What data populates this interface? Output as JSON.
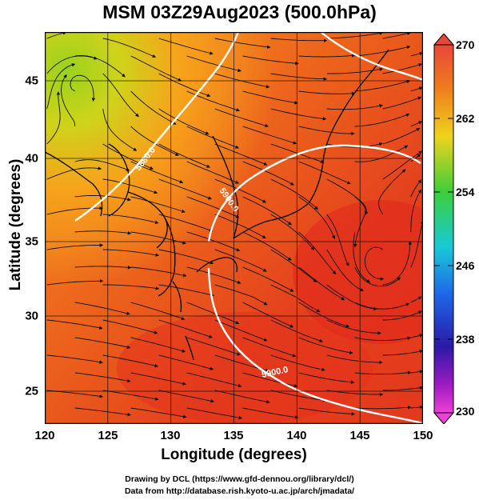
{
  "title": "MSM 03Z29Aug2023 (500.0hPa)",
  "xlabel": "Longitude (degrees)",
  "ylabel": "Latitude  (degrees)",
  "x_ticks": [
    "120",
    "125",
    "130",
    "135",
    "140",
    "145",
    "150"
  ],
  "y_ticks": [
    "45",
    "40",
    "35",
    "30",
    "25"
  ],
  "colorbar_ticks": [
    "270",
    "262",
    "254",
    "246",
    "238",
    "230"
  ],
  "contour_labels": [
    "5880.0",
    "5900.0",
    "5900.0"
  ],
  "credits": [
    "Drawing by DCL (https://www.gfd-dennou.org/library/dcl/)",
    "Data from http://database.rish.kyoto-u.ac.jp/arch/jmadata/"
  ],
  "chart_data": {
    "type": "heatmap",
    "title": "MSM 03Z29Aug2023 (500.0hPa)",
    "xlabel": "Longitude (degrees)",
    "ylabel": "Latitude  (degrees)",
    "xlim": [
      120,
      150
    ],
    "ylim": [
      22.5,
      47.6
    ],
    "colorbar": {
      "min": 230,
      "max": 270,
      "ticks": [
        270,
        262,
        254,
        246,
        238,
        230
      ]
    },
    "contours": [
      {
        "label": "5880.0",
        "lon_lat_path": [
          [
            122.5,
            36.5
          ],
          [
            126,
            39
          ],
          [
            129.5,
            44
          ],
          [
            131.5,
            46
          ],
          [
            133,
            47.6
          ]
        ]
      },
      {
        "label": "5900.0",
        "lon_lat_path": [
          [
            132.5,
            35
          ],
          [
            134,
            37.5
          ],
          [
            137,
            39.5
          ],
          [
            140,
            40.5
          ],
          [
            144,
            40.4
          ],
          [
            148,
            39.5
          ],
          [
            150,
            37.5
          ]
        ]
      },
      {
        "label": "5900.0",
        "lon_lat_path": [
          [
            132.5,
            34
          ],
          [
            133,
            31
          ],
          [
            134.5,
            28
          ],
          [
            137,
            26
          ],
          [
            141,
            24.5
          ],
          [
            146,
            23.5
          ],
          [
            150,
            22.7
          ]
        ]
      }
    ],
    "colors": {
      "cold": "#9ad21e",
      "mid": "#f7a21b",
      "warm": "#e2301c",
      "contour": "#ffffff",
      "coastline": "#000000"
    }
  }
}
